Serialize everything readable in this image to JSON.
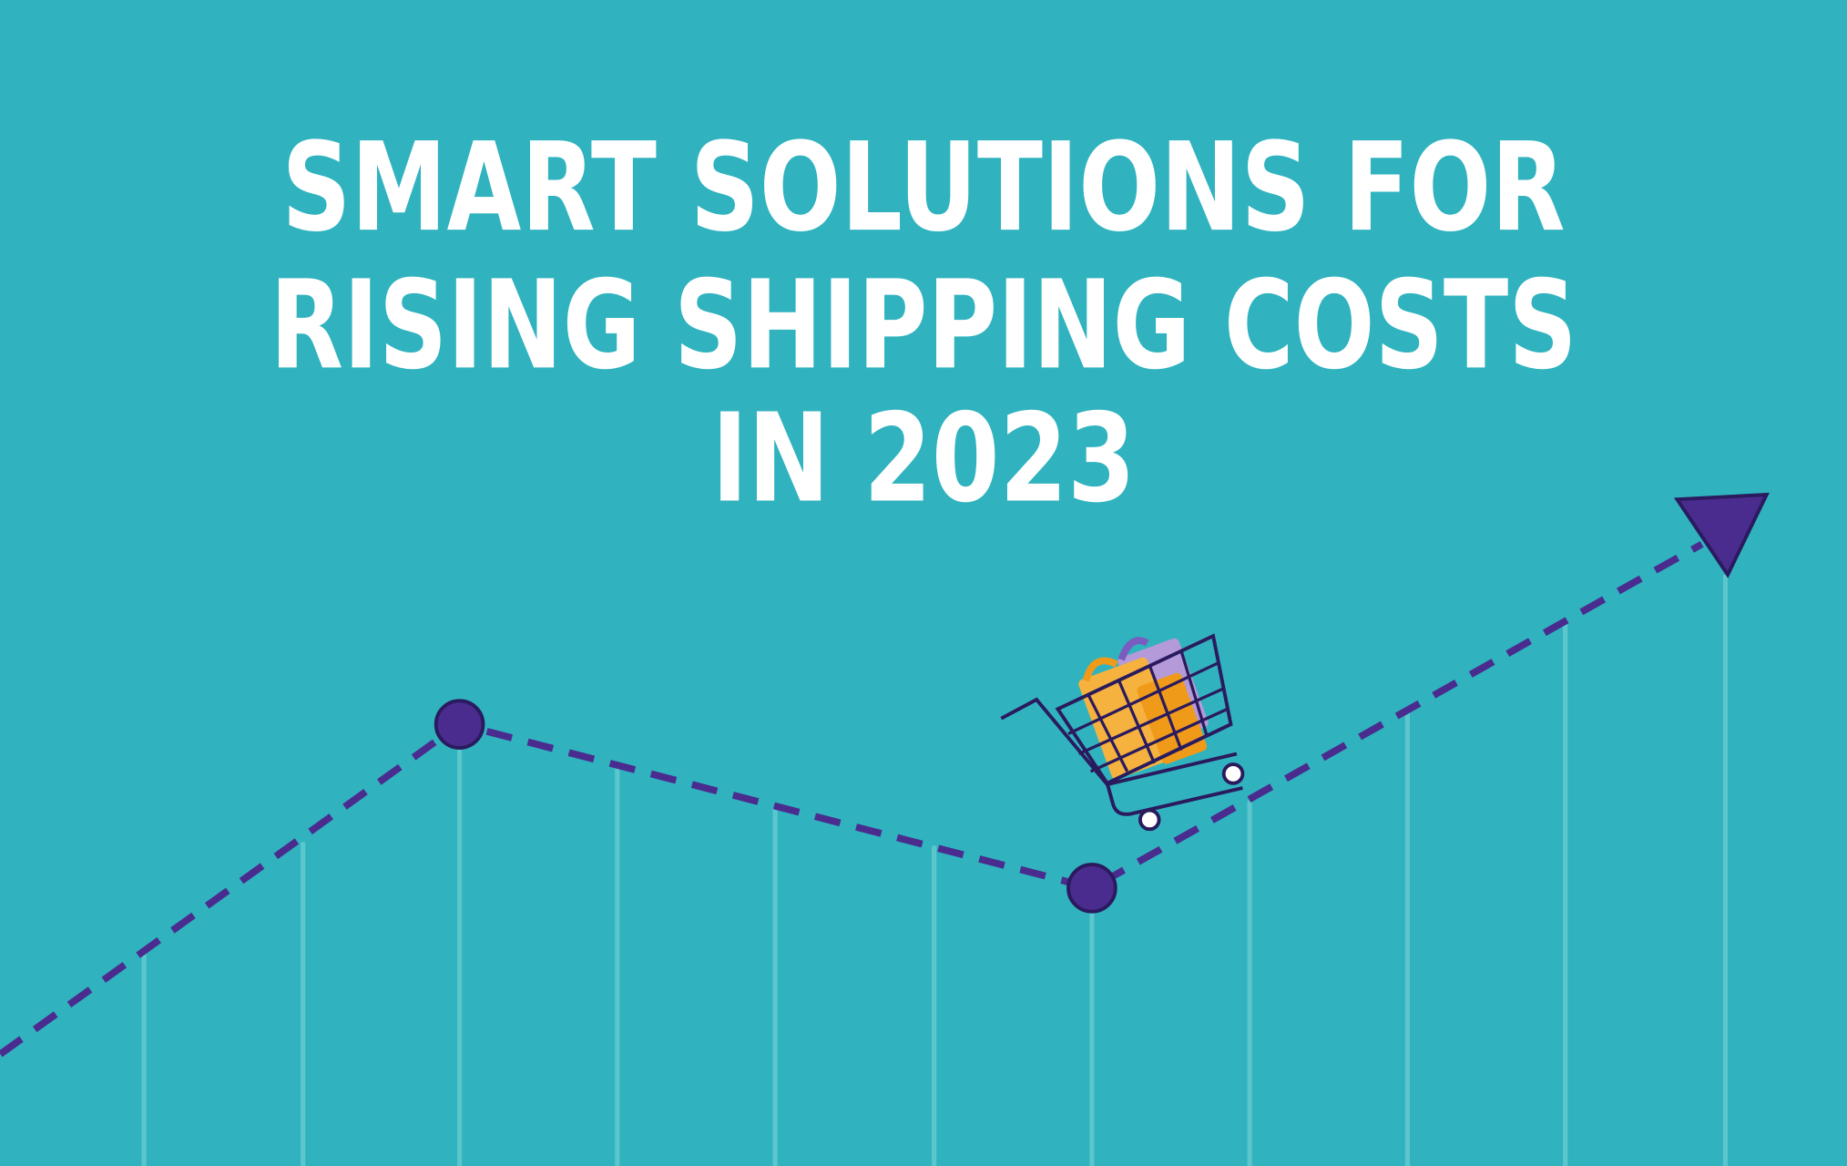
{
  "header": {
    "title_lines": [
      "SMART SOLUTIONS FOR",
      "RISING SHIPPING COSTS",
      "IN 2023"
    ]
  }
}
